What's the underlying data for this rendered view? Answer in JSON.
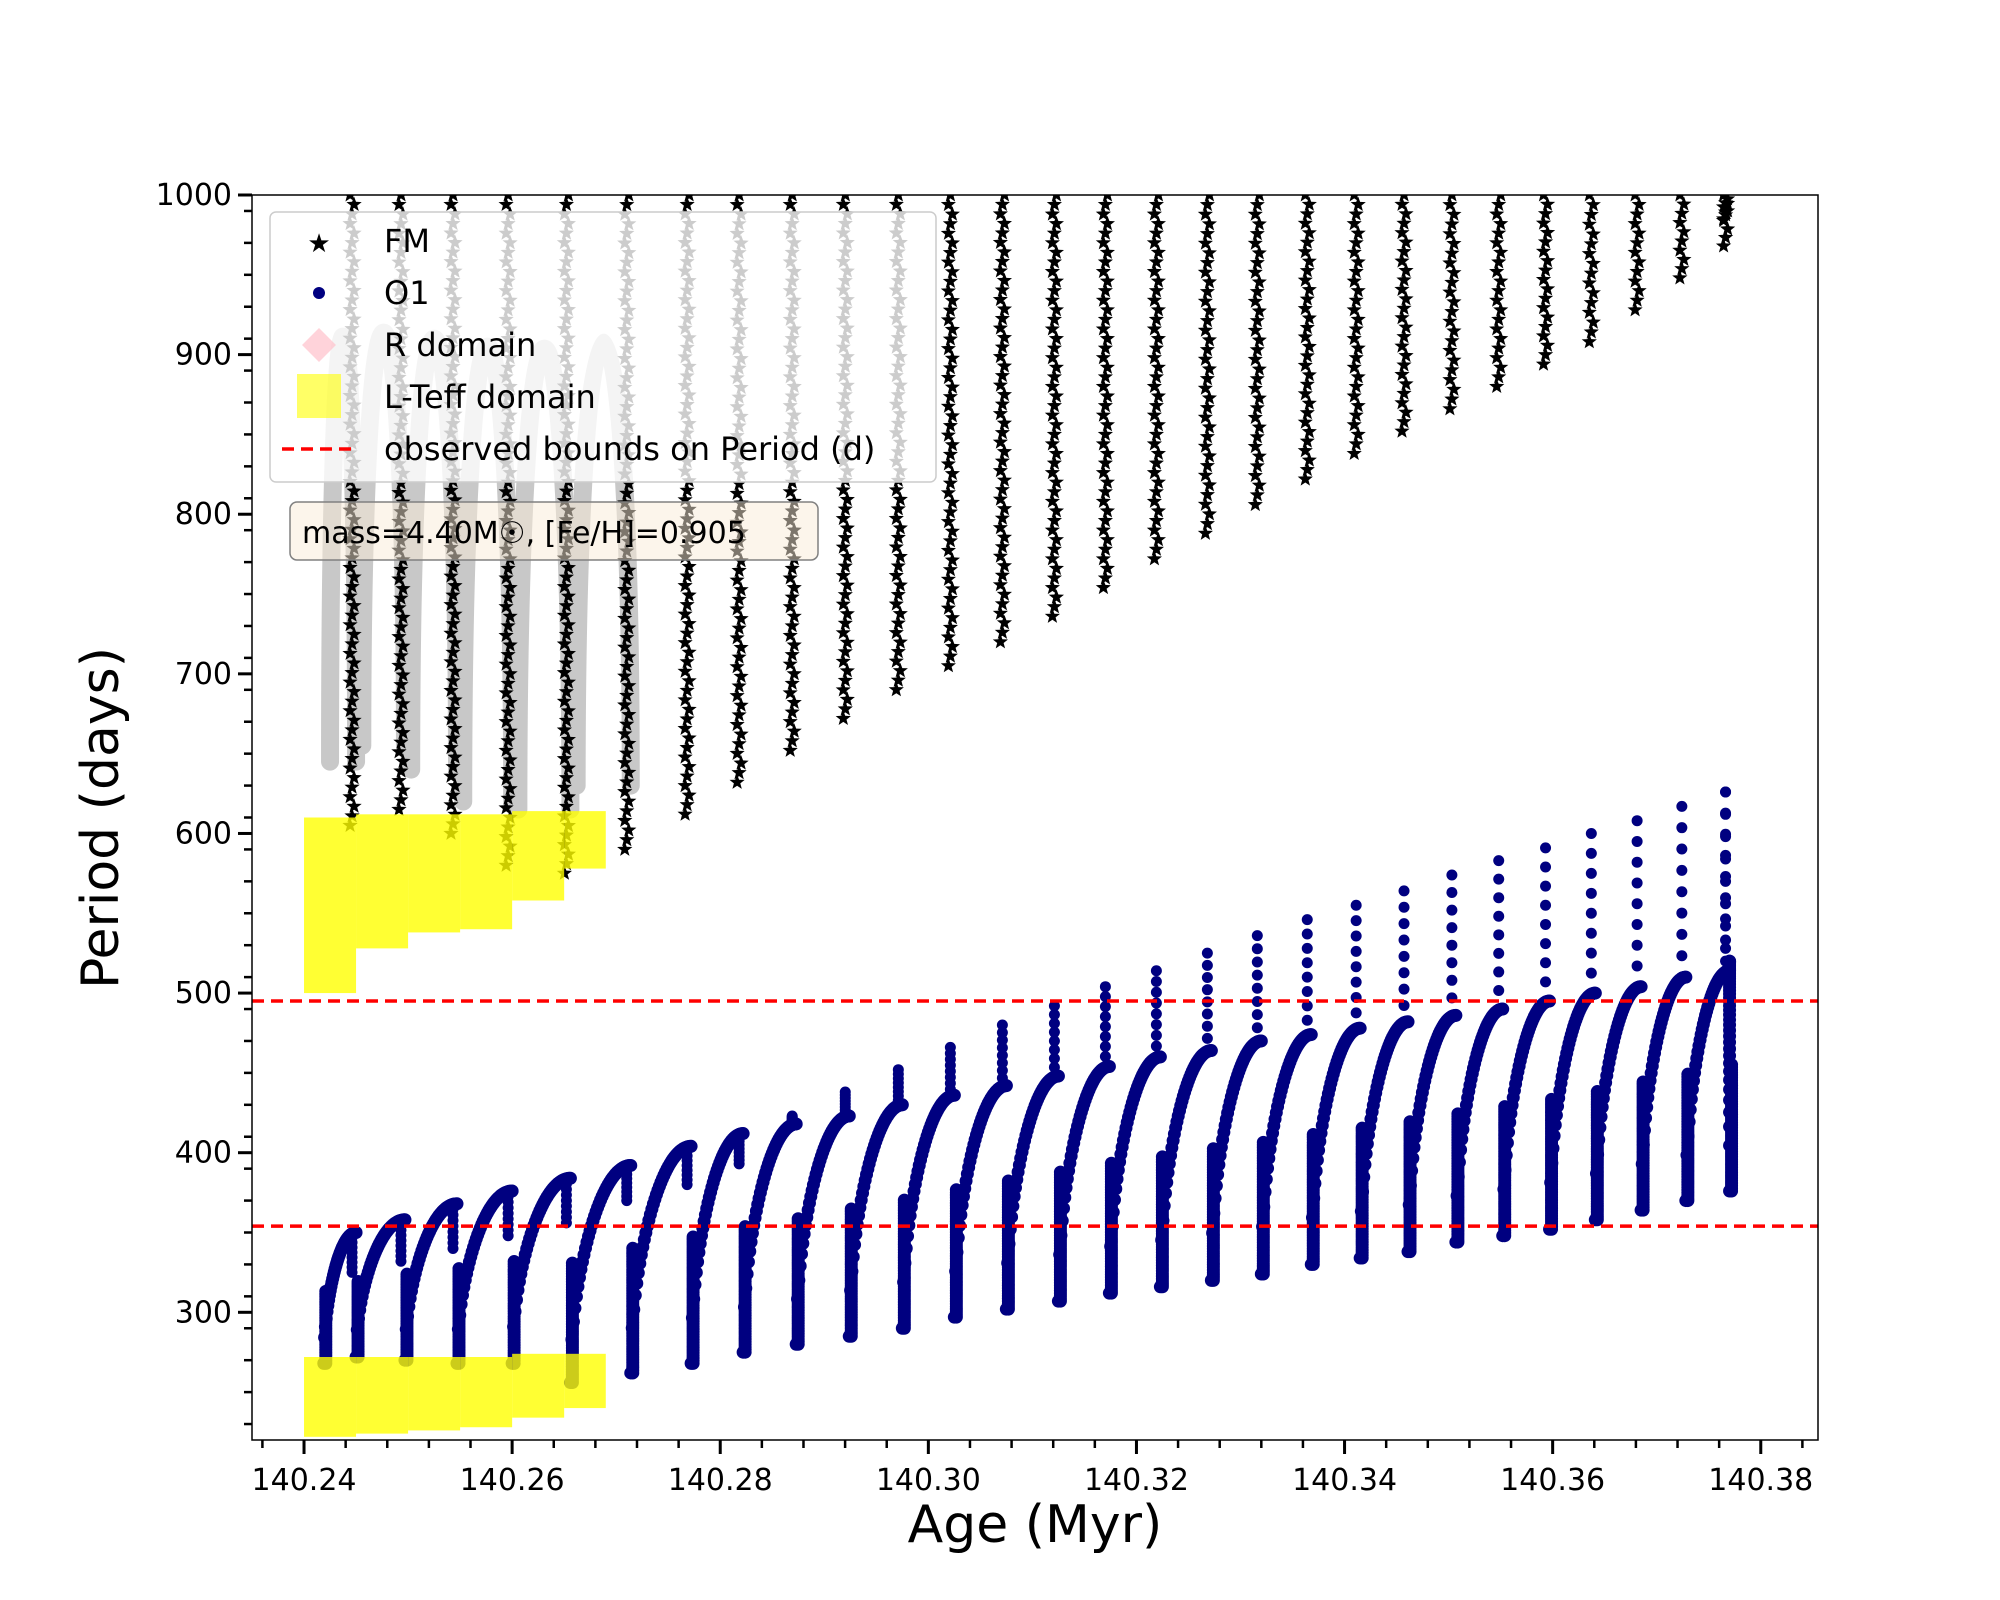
{
  "chart_data": {
    "type": "scatter",
    "xlabel": "Age (Myr)",
    "ylabel": "Period (days)",
    "xlim": [
      140.235,
      140.3855
    ],
    "ylim": [
      220,
      1000
    ],
    "x_ticks": [
      "140.24",
      "140.26",
      "140.28",
      "140.30",
      "140.32",
      "140.34",
      "140.36",
      "140.38"
    ],
    "x_tick_values": [
      140.24,
      140.26,
      140.28,
      140.3,
      140.32,
      140.34,
      140.36,
      140.38
    ],
    "y_ticks": [
      "300",
      "400",
      "500",
      "600",
      "700",
      "800",
      "900",
      "1000"
    ],
    "y_tick_values": [
      300,
      400,
      500,
      600,
      700,
      800,
      900,
      1000
    ],
    "grid": false,
    "legend_position": "top-left",
    "legend": [
      "FM",
      "O1",
      "R domain",
      "L-Teff domain",
      "observed bounds on Period (d)"
    ],
    "annotation": "mass=4.40M☉, [Fe/H]=0.905",
    "observed_bounds": [
      495,
      354
    ],
    "cycles": [
      {
        "x0": 140.2419,
        "x1": 140.245,
        "o1_min": 268,
        "o1_max": 350,
        "o1_spike": 325,
        "fm_min": 605,
        "fm_max": 1000
      },
      {
        "x0": 140.245,
        "x1": 140.2497,
        "o1_min": 272,
        "o1_max": 358,
        "o1_spike": 332,
        "fm_min": 615,
        "fm_max": 1000
      },
      {
        "x0": 140.2497,
        "x1": 140.2547,
        "o1_min": 270,
        "o1_max": 368,
        "o1_spike": 340,
        "fm_min": 600,
        "fm_max": 1000
      },
      {
        "x0": 140.2547,
        "x1": 140.26,
        "o1_min": 268,
        "o1_max": 376,
        "o1_spike": 348,
        "fm_min": 580,
        "fm_max": 1000
      },
      {
        "x0": 140.26,
        "x1": 140.2656,
        "o1_min": 268,
        "o1_max": 384,
        "o1_spike": 356,
        "fm_min": 575,
        "fm_max": 1000
      },
      {
        "x0": 140.2656,
        "x1": 140.2714,
        "o1_min": 256,
        "o1_max": 392,
        "o1_spike": 370,
        "fm_min": 590,
        "fm_max": 1000
      },
      {
        "x0": 140.2714,
        "x1": 140.2772,
        "o1_min": 262,
        "o1_max": 404,
        "o1_spike": 380,
        "fm_min": 612,
        "fm_max": 1000
      },
      {
        "x0": 140.2772,
        "x1": 140.2822,
        "o1_min": 268,
        "o1_max": 412,
        "o1_spike": 393,
        "fm_min": 632,
        "fm_max": 1000
      },
      {
        "x0": 140.2822,
        "x1": 140.2873,
        "o1_min": 275,
        "o1_max": 418,
        "o1_spike": 423,
        "fm_min": 652,
        "fm_max": 1000
      },
      {
        "x0": 140.2873,
        "x1": 140.2924,
        "o1_min": 280,
        "o1_max": 423,
        "o1_spike": 438,
        "fm_min": 672,
        "fm_max": 1000
      },
      {
        "x0": 140.2924,
        "x1": 140.2975,
        "o1_min": 285,
        "o1_max": 430,
        "o1_spike": 452,
        "fm_min": 690,
        "fm_max": 1000
      },
      {
        "x0": 140.2975,
        "x1": 140.3025,
        "o1_min": 290,
        "o1_max": 436,
        "o1_spike": 466,
        "fm_min": 705,
        "fm_max": 1000
      },
      {
        "x0": 140.3025,
        "x1": 140.3075,
        "o1_min": 297,
        "o1_max": 442,
        "o1_spike": 480,
        "fm_min": 720,
        "fm_max": 1000
      },
      {
        "x0": 140.3075,
        "x1": 140.3125,
        "o1_min": 302,
        "o1_max": 448,
        "o1_spike": 492,
        "fm_min": 736,
        "fm_max": 1000
      },
      {
        "x0": 140.3125,
        "x1": 140.3174,
        "o1_min": 307,
        "o1_max": 454,
        "o1_spike": 504,
        "fm_min": 754,
        "fm_max": 1000
      },
      {
        "x0": 140.3174,
        "x1": 140.3223,
        "o1_min": 312,
        "o1_max": 460,
        "o1_spike": 514,
        "fm_min": 772,
        "fm_max": 1000
      },
      {
        "x0": 140.3223,
        "x1": 140.3272,
        "o1_min": 316,
        "o1_max": 464,
        "o1_spike": 525,
        "fm_min": 788,
        "fm_max": 1000
      },
      {
        "x0": 140.3272,
        "x1": 140.332,
        "o1_min": 320,
        "o1_max": 470,
        "o1_spike": 536,
        "fm_min": 806,
        "fm_max": 1000
      },
      {
        "x0": 140.332,
        "x1": 140.3368,
        "o1_min": 324,
        "o1_max": 474,
        "o1_spike": 546,
        "fm_min": 822,
        "fm_max": 1000
      },
      {
        "x0": 140.3368,
        "x1": 140.3415,
        "o1_min": 330,
        "o1_max": 478,
        "o1_spike": 555,
        "fm_min": 838,
        "fm_max": 1000
      },
      {
        "x0": 140.3415,
        "x1": 140.3461,
        "o1_min": 334,
        "o1_max": 482,
        "o1_spike": 564,
        "fm_min": 852,
        "fm_max": 1000
      },
      {
        "x0": 140.3461,
        "x1": 140.3507,
        "o1_min": 338,
        "o1_max": 486,
        "o1_spike": 574,
        "fm_min": 866,
        "fm_max": 1000
      },
      {
        "x0": 140.3507,
        "x1": 140.3552,
        "o1_min": 344,
        "o1_max": 490,
        "o1_spike": 583,
        "fm_min": 880,
        "fm_max": 1000
      },
      {
        "x0": 140.3552,
        "x1": 140.3597,
        "o1_min": 348,
        "o1_max": 495,
        "o1_spike": 591,
        "fm_min": 894,
        "fm_max": 1000
      },
      {
        "x0": 140.3597,
        "x1": 140.3641,
        "o1_min": 352,
        "o1_max": 500,
        "o1_spike": 600,
        "fm_min": 908,
        "fm_max": 1000
      },
      {
        "x0": 140.3641,
        "x1": 140.3685,
        "o1_min": 358,
        "o1_max": 504,
        "o1_spike": 608,
        "fm_min": 928,
        "fm_max": 1000
      },
      {
        "x0": 140.3685,
        "x1": 140.3728,
        "o1_min": 364,
        "o1_max": 510,
        "o1_spike": 617,
        "fm_min": 948,
        "fm_max": 1000
      },
      {
        "x0": 140.3728,
        "x1": 140.377,
        "o1_min": 370,
        "o1_max": 514,
        "o1_spike": 626,
        "fm_min": 968,
        "fm_max": 1000
      },
      {
        "x0": 140.377,
        "x1": 140.377,
        "o1_min": 376,
        "o1_max": 520,
        "o1_spike": 626,
        "fm_min": 985,
        "fm_max": 1000
      }
    ],
    "r_domain_region": {
      "x": [
        140.241,
        140.268
      ],
      "y": [
        550,
        1000
      ]
    },
    "l_teff_domain_fm": [
      {
        "x0": 140.24,
        "x1": 140.245,
        "y0": 500,
        "y1": 610
      },
      {
        "x0": 140.245,
        "x1": 140.25,
        "y0": 528,
        "y1": 612
      },
      {
        "x0": 140.25,
        "x1": 140.255,
        "y0": 538,
        "y1": 612
      },
      {
        "x0": 140.255,
        "x1": 140.26,
        "y0": 540,
        "y1": 612
      },
      {
        "x0": 140.26,
        "x1": 140.265,
        "y0": 558,
        "y1": 614
      },
      {
        "x0": 140.265,
        "x1": 140.269,
        "y0": 578,
        "y1": 614
      }
    ],
    "l_teff_domain_o1": [
      {
        "x0": 140.24,
        "x1": 140.245,
        "y0": 222,
        "y1": 272
      },
      {
        "x0": 140.245,
        "x1": 140.25,
        "y0": 224,
        "y1": 272
      },
      {
        "x0": 140.25,
        "x1": 140.255,
        "y0": 226,
        "y1": 272
      },
      {
        "x0": 140.255,
        "x1": 140.26,
        "y0": 228,
        "y1": 272
      },
      {
        "x0": 140.26,
        "x1": 140.265,
        "y0": 234,
        "y1": 274
      },
      {
        "x0": 140.265,
        "x1": 140.269,
        "y0": 240,
        "y1": 274
      }
    ],
    "series_colors": {
      "FM": "#000000",
      "O1": "#000080",
      "R domain": "#ffc0cb",
      "L-Teff domain": "#ffff00",
      "observed bounds on Period (d)": "#ff0000",
      "annotation_background": "#faebd7"
    }
  }
}
